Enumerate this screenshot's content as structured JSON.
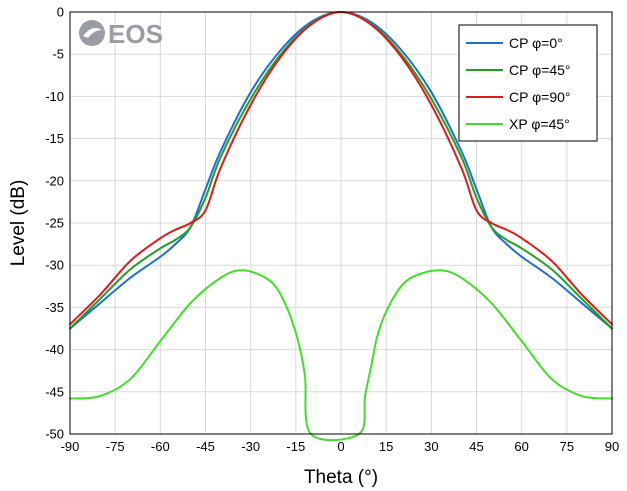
{
  "logo": {
    "text": "EOS"
  },
  "chart_data": {
    "type": "line",
    "title": "",
    "xlabel": "Theta (°)",
    "ylabel": "Level (dB)",
    "xlim": [
      -90,
      90
    ],
    "ylim": [
      -50,
      0
    ],
    "xticks": [
      -90,
      -75,
      -60,
      -45,
      -30,
      -15,
      0,
      15,
      30,
      45,
      60,
      75,
      90
    ],
    "yticks": [
      0,
      -5,
      -10,
      -15,
      -20,
      -25,
      -30,
      -35,
      -40,
      -45,
      -50
    ],
    "grid": true,
    "legend_position": "top-right",
    "series": [
      {
        "name": "CP φ=0°",
        "color": "#1f6fd1",
        "x": [
          -90,
          -80,
          -70,
          -60,
          -55,
          -50,
          -45,
          -40,
          -30,
          -20,
          -10,
          0,
          10,
          20,
          30,
          40,
          45,
          50,
          55,
          60,
          70,
          80,
          90
        ],
        "y": [
          -37.5,
          -34.5,
          -31.5,
          -29.0,
          -27.5,
          -25.5,
          -21.0,
          -16.5,
          -9.5,
          -4.5,
          -1.2,
          0,
          -1.2,
          -4.5,
          -9.5,
          -16.5,
          -21.0,
          -25.5,
          -27.5,
          -29.0,
          -31.5,
          -34.5,
          -37.5
        ]
      },
      {
        "name": "CP φ=45°",
        "color": "#22a022",
        "x": [
          -90,
          -80,
          -70,
          -60,
          -55,
          -50,
          -45,
          -40,
          -30,
          -20,
          -10,
          0,
          10,
          20,
          30,
          40,
          45,
          50,
          55,
          60,
          70,
          80,
          90
        ],
        "y": [
          -37.5,
          -34.0,
          -30.5,
          -28.0,
          -27.0,
          -25.5,
          -22.0,
          -17.2,
          -10.3,
          -5.0,
          -1.4,
          0,
          -1.4,
          -5.0,
          -10.3,
          -17.2,
          -22.0,
          -25.5,
          -27.0,
          -28.0,
          -30.5,
          -34.0,
          -37.5
        ]
      },
      {
        "name": "CP φ=90°",
        "color": "#e01a1a",
        "x": [
          -90,
          -80,
          -70,
          -60,
          -55,
          -50,
          -45,
          -40,
          -30,
          -20,
          -10,
          0,
          10,
          20,
          30,
          40,
          45,
          50,
          55,
          60,
          70,
          80,
          90
        ],
        "y": [
          -37.0,
          -33.5,
          -29.5,
          -26.8,
          -25.8,
          -25.0,
          -23.5,
          -18.5,
          -11.0,
          -5.3,
          -1.5,
          0,
          -1.5,
          -5.3,
          -11.0,
          -18.5,
          -23.5,
          -25.0,
          -25.8,
          -26.8,
          -29.5,
          -33.5,
          -37.0
        ]
      },
      {
        "name": "XP φ=45°",
        "color": "#44dd2a",
        "x": [
          -90,
          -80,
          -70,
          -60,
          -50,
          -40,
          -33,
          -25,
          -20,
          -15,
          -12,
          -10,
          6,
          8,
          10,
          12,
          15,
          20,
          25,
          33,
          40,
          50,
          60,
          70,
          80,
          90
        ],
        "y": [
          -45.8,
          -45.5,
          -43.5,
          -39.0,
          -34.5,
          -31.5,
          -30.6,
          -31.5,
          -33.5,
          -38.0,
          -43.0,
          -50.0,
          -50.0,
          -45.5,
          -42.0,
          -38.5,
          -35.5,
          -32.5,
          -31.2,
          -30.6,
          -31.5,
          -34.5,
          -39.0,
          -43.5,
          -45.5,
          -45.8
        ]
      }
    ]
  }
}
